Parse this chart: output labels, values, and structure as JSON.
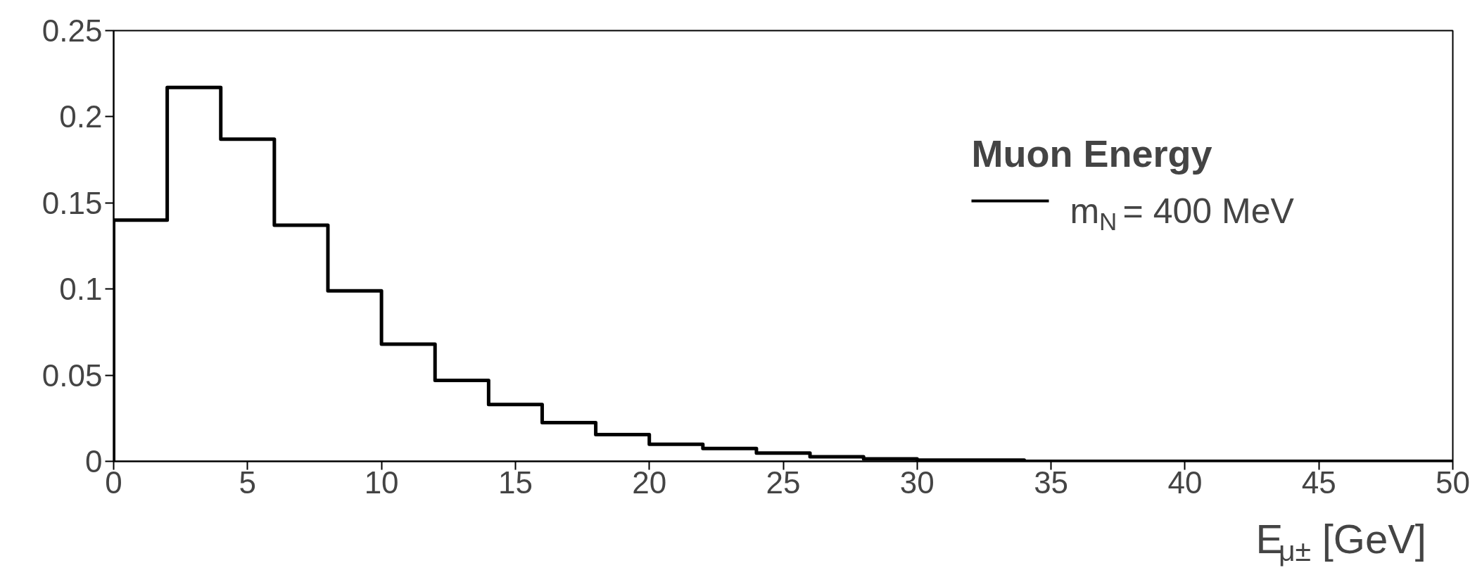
{
  "chart_data": {
    "type": "histogram",
    "xlabel": "E$_{μ±}$ [GeV]",
    "legend_title": "Muon Energy",
    "bins": [
      0,
      2,
      4,
      6,
      8,
      10,
      12,
      14,
      16,
      18,
      20,
      22,
      24,
      26,
      28,
      30,
      32,
      34,
      36,
      38,
      40,
      42,
      44,
      46,
      48,
      50
    ],
    "series": [
      {
        "name": "m$_{N}$ = 400 MeV",
        "color": "#000000",
        "values": [
          0.14,
          0.217,
          0.187,
          0.137,
          0.099,
          0.068,
          0.047,
          0.033,
          0.0225,
          0.0155,
          0.0099,
          0.0075,
          0.0048,
          0.0027,
          0.0014,
          0.0007,
          0.0007,
          0,
          0,
          0,
          0,
          0,
          0,
          0,
          0
        ]
      }
    ],
    "xlim": [
      0,
      50
    ],
    "ylim": [
      0,
      0.25
    ],
    "xticks": [
      0,
      5,
      10,
      15,
      20,
      25,
      30,
      35,
      40,
      45,
      50
    ],
    "yticks": [
      0,
      0.05,
      0.1,
      0.15,
      0.2,
      0.25
    ],
    "grid": false,
    "legend": "top right"
  }
}
